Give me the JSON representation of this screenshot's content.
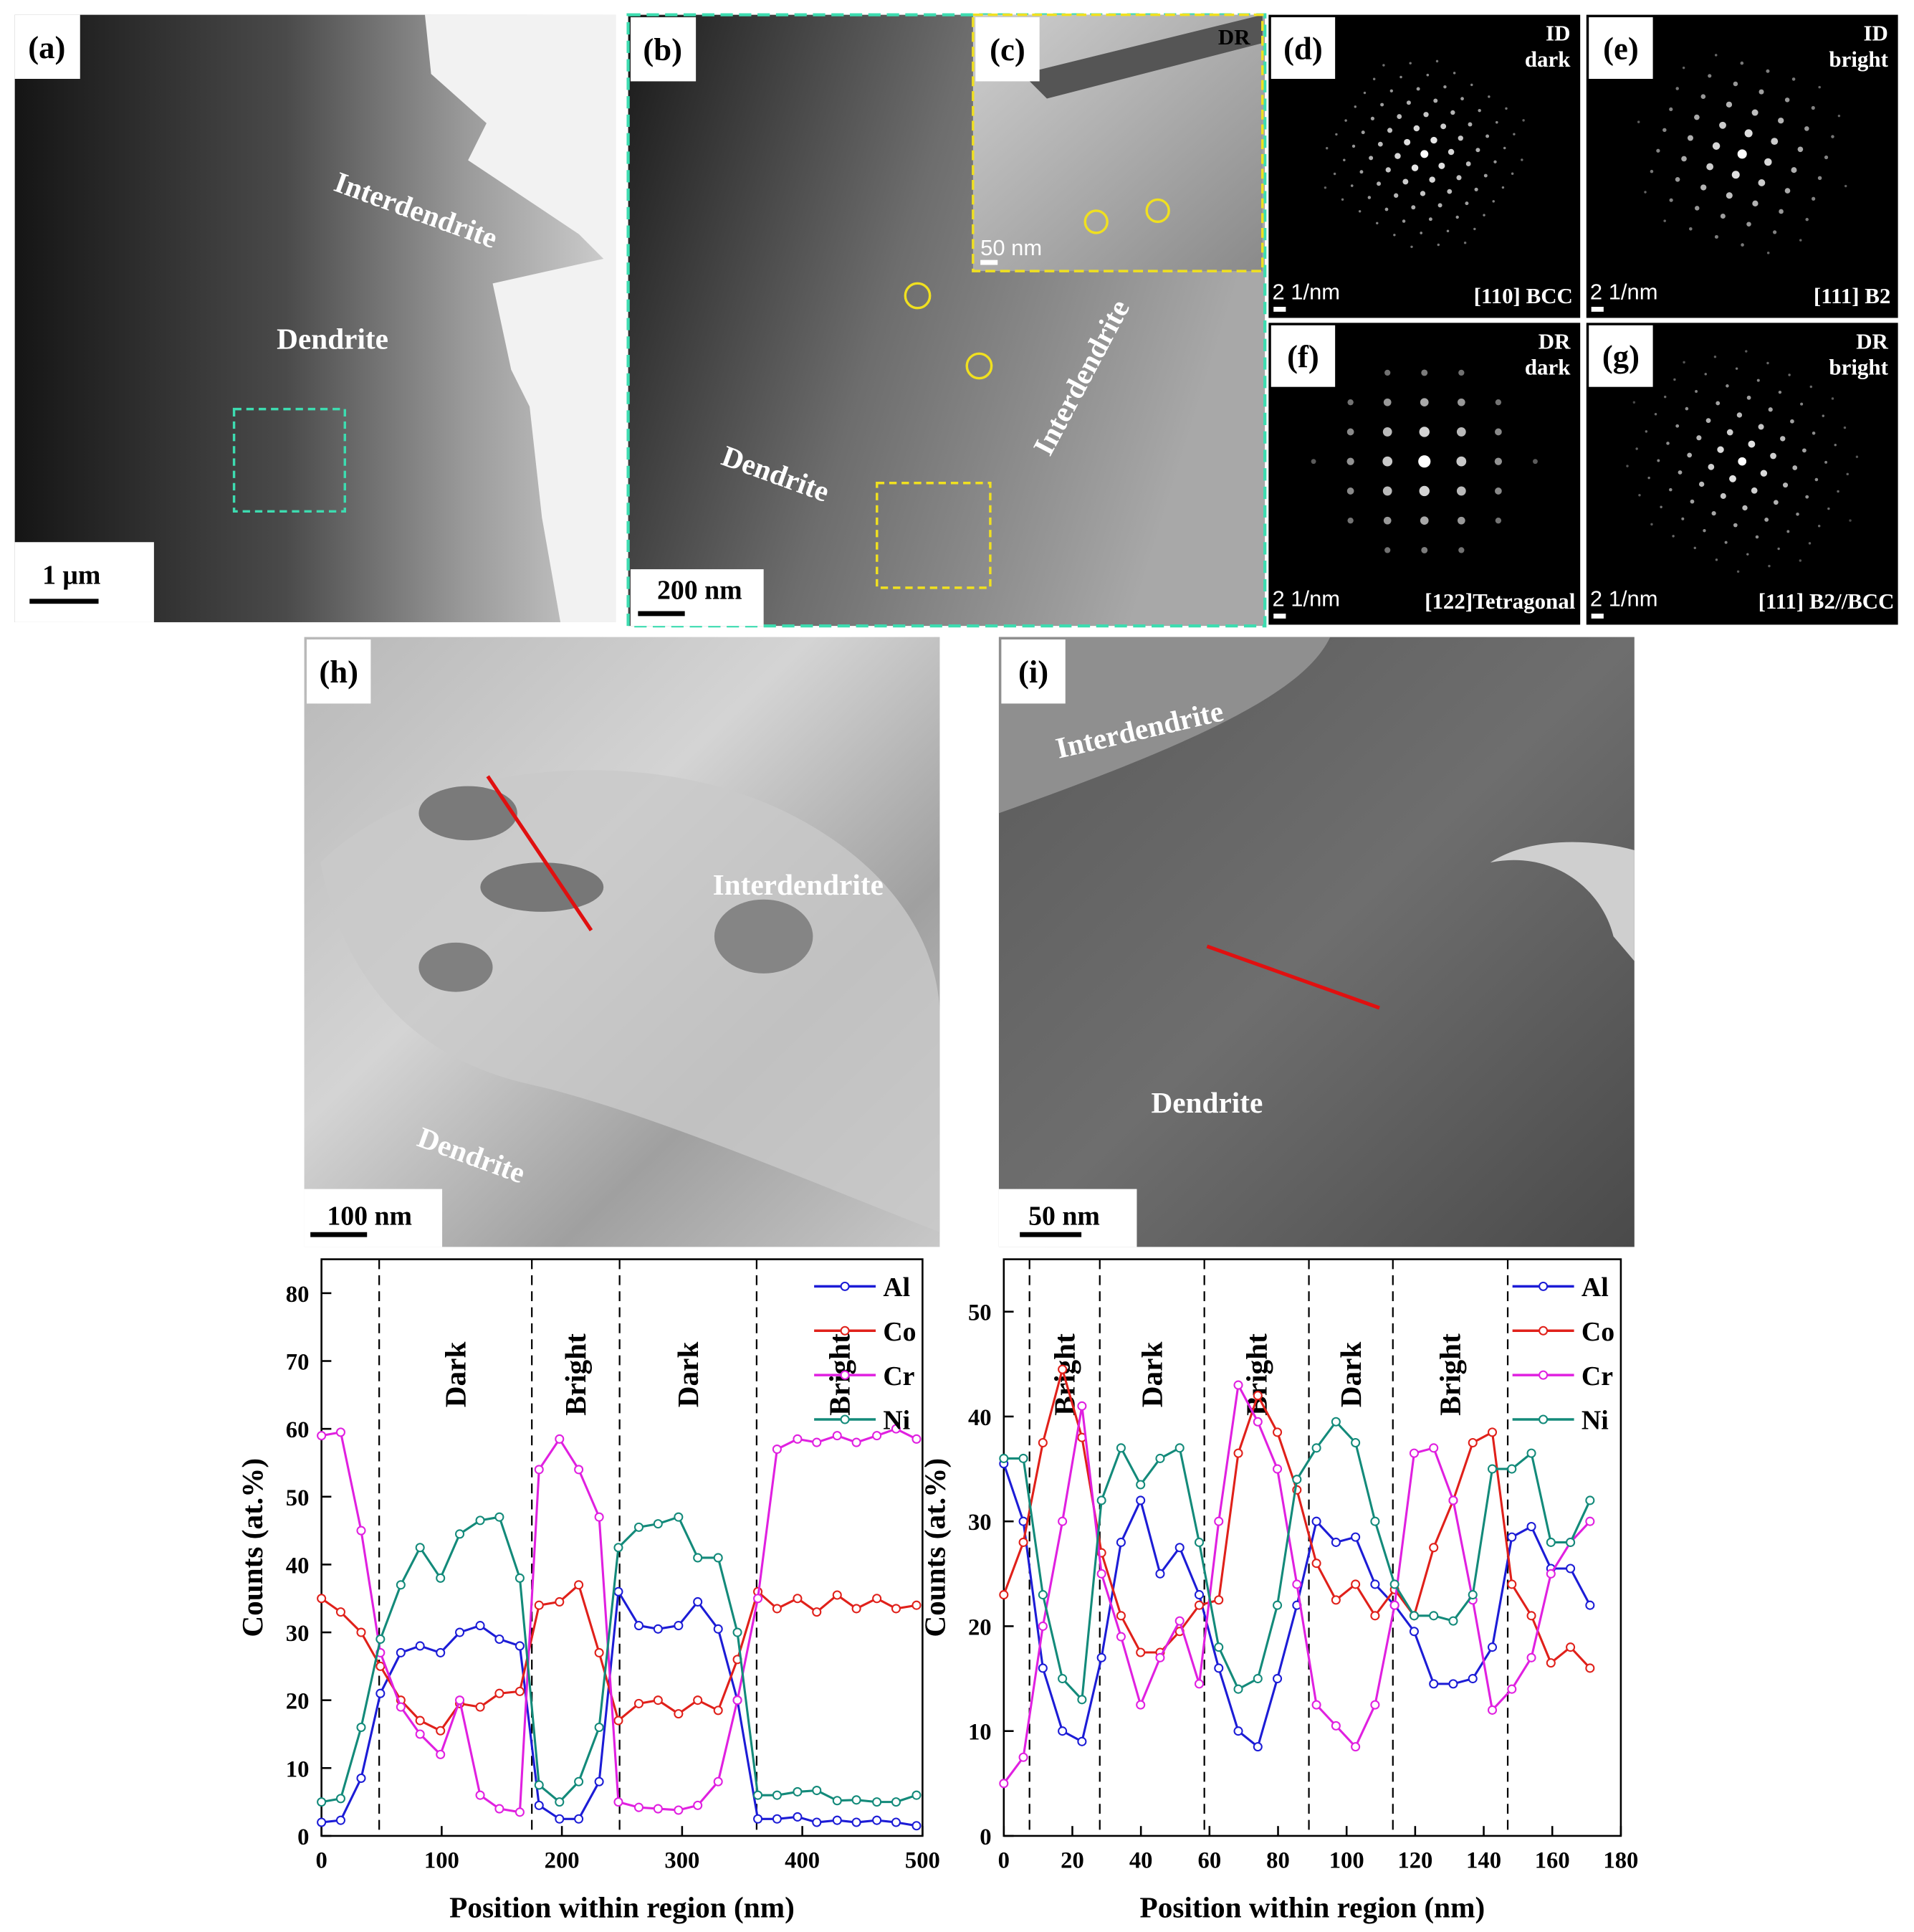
{
  "panels": {
    "a": {
      "label": "(a)",
      "regions": [
        "Interdendrite",
        "Dendrite"
      ],
      "scale_bar": "1 μm"
    },
    "b": {
      "label": "(b)",
      "regions": [
        "Dendrite",
        "Interdendrite"
      ],
      "scale_bar": "200 nm"
    },
    "c": {
      "label": "(c)",
      "tag": "DR",
      "scale_bar": "50 nm"
    },
    "d": {
      "label": "(d)",
      "tag": [
        "ID",
        "dark"
      ],
      "scale_bar": "2 1/nm",
      "zone": "[110] BCC"
    },
    "e": {
      "label": "(e)",
      "tag": [
        "ID",
        "bright"
      ],
      "scale_bar": "2 1/nm",
      "zone": "[111] B2"
    },
    "f": {
      "label": "(f)",
      "tag": [
        "DR",
        "dark"
      ],
      "scale_bar": "2 1/nm",
      "zone": "[122]Tetragonal"
    },
    "g": {
      "label": "(g)",
      "tag": [
        "DR",
        "bright"
      ],
      "scale_bar": "2 1/nm",
      "zone": "[111] B2//BCC"
    },
    "h": {
      "label": "(h)",
      "regions": [
        "Interdendrite",
        "Dendrite"
      ],
      "scale_bar": "100 nm"
    },
    "i": {
      "label": "(i)",
      "regions": [
        "Interdendrite",
        "Dendrite"
      ],
      "scale_bar": "50 nm"
    }
  },
  "chart_data": [
    {
      "type": "line",
      "xlabel": "Position within region (nm)",
      "ylabel": "Counts (at.%)",
      "x": [
        0,
        16,
        33,
        49,
        66,
        82,
        99,
        115,
        132,
        148,
        165,
        181,
        198,
        214,
        231,
        247,
        264,
        280,
        297,
        313,
        330,
        346,
        363,
        379,
        396,
        412,
        429,
        445,
        462,
        478,
        495
      ],
      "series": [
        {
          "name": "Al",
          "color": "#1c1cd6",
          "values": [
            2,
            2.3,
            8.5,
            21,
            27,
            28,
            27,
            30,
            31,
            29,
            28,
            4.5,
            2.5,
            2.5,
            8,
            36,
            31,
            30.5,
            31,
            34.5,
            30.5,
            20,
            2.5,
            2.5,
            2.8,
            2,
            2.3,
            2,
            2.3,
            2,
            1.5
          ]
        },
        {
          "name": "Co",
          "color": "#e0201a",
          "values": [
            35,
            33,
            30,
            25,
            20,
            17,
            15.5,
            19.5,
            19,
            21,
            21.3,
            34,
            34.5,
            37,
            27,
            17,
            19.5,
            20,
            18,
            20,
            18.5,
            26,
            36,
            33.5,
            35,
            33,
            35.5,
            33.5,
            35,
            33.5,
            34
          ]
        },
        {
          "name": "Cr",
          "color": "#e020e0",
          "values": [
            59,
            59.5,
            45,
            27,
            19,
            15,
            12,
            20,
            6,
            4,
            3.5,
            54,
            58.5,
            54,
            47,
            5,
            4.2,
            4,
            3.8,
            4.5,
            8,
            20,
            35,
            57,
            58.5,
            58,
            59,
            58,
            59,
            60,
            58.5
          ]
        },
        {
          "name": "Ni",
          "color": "#138a7a",
          "values": [
            5,
            5.5,
            16,
            29,
            37,
            42.5,
            38,
            44.5,
            46.5,
            47,
            38,
            7.5,
            5,
            8,
            16,
            42.5,
            45.5,
            46,
            47,
            41,
            41,
            30,
            6,
            6,
            6.5,
            6.7,
            5.2,
            5.3,
            5,
            5,
            6
          ]
        }
      ],
      "xlim": [
        0,
        500
      ],
      "ylim": [
        0,
        85
      ],
      "xticks": [
        0,
        100,
        200,
        300,
        400,
        500
      ],
      "yticks": [
        0,
        10,
        20,
        30,
        40,
        50,
        60,
        70,
        80
      ],
      "vlines": [
        48,
        175,
        248,
        362
      ],
      "annotations": [
        "Dark",
        "Bright",
        "Dark",
        "Bright"
      ]
    },
    {
      "type": "line",
      "xlabel": "Position within region (nm)",
      "ylabel": "Counts (at.%)",
      "x": [
        0,
        5.7,
        11.4,
        17.1,
        22.8,
        28.5,
        34.2,
        39.9,
        45.6,
        51.3,
        57,
        62.7,
        68.4,
        74.1,
        79.8,
        85.5,
        91.2,
        96.9,
        102.6,
        108.3,
        114,
        119.7,
        125.4,
        131.1,
        136.8,
        142.5,
        148.2,
        153.9,
        159.6,
        165.3,
        171
      ],
      "series": [
        {
          "name": "Al",
          "color": "#1c1cd6",
          "values": [
            35.5,
            30,
            16,
            10,
            9,
            17,
            28,
            32,
            25,
            27.5,
            23,
            16,
            10,
            8.5,
            15,
            22,
            30,
            28,
            28.5,
            24,
            22,
            19.5,
            14.5,
            14.5,
            15,
            18,
            28.5,
            29.5,
            25.5,
            25.5,
            22
          ]
        },
        {
          "name": "Co",
          "color": "#e0201a",
          "values": [
            23,
            28,
            37.5,
            44.5,
            38,
            27,
            21,
            17.5,
            17.5,
            19.5,
            22,
            22.5,
            36.5,
            42,
            38.5,
            33,
            26,
            22.5,
            24,
            21,
            23.5,
            21,
            27.5,
            32,
            37.5,
            38.5,
            24,
            21,
            16.5,
            18,
            16
          ]
        },
        {
          "name": "Cr",
          "color": "#e020e0",
          "values": [
            5,
            7.5,
            20,
            30,
            41,
            25,
            19,
            12.5,
            17,
            20.5,
            14.5,
            30,
            43,
            39.5,
            35,
            24,
            12.5,
            10.5,
            8.5,
            12.5,
            22,
            36.5,
            37,
            32,
            22.5,
            12,
            14,
            17,
            25,
            28,
            30
          ]
        },
        {
          "name": "Ni",
          "color": "#138a7a",
          "values": [
            36,
            36,
            23,
            15,
            13,
            32,
            37,
            33.5,
            36,
            37,
            28,
            18,
            14,
            15,
            22,
            34,
            37,
            39.5,
            37.5,
            30,
            24,
            21,
            21,
            20.5,
            23,
            35,
            35,
            36.5,
            28,
            28,
            32
          ]
        }
      ],
      "xlim": [
        0,
        180
      ],
      "ylim": [
        0,
        55
      ],
      "xticks": [
        0,
        20,
        40,
        60,
        80,
        100,
        120,
        140,
        160,
        180
      ],
      "yticks": [
        0,
        10,
        20,
        30,
        40,
        50
      ],
      "vlines": [
        7.5,
        28,
        58.5,
        89,
        113.5,
        147
      ],
      "annotations": [
        "Bright",
        "Dark",
        "Bright",
        "Dark",
        "Bright"
      ]
    }
  ]
}
